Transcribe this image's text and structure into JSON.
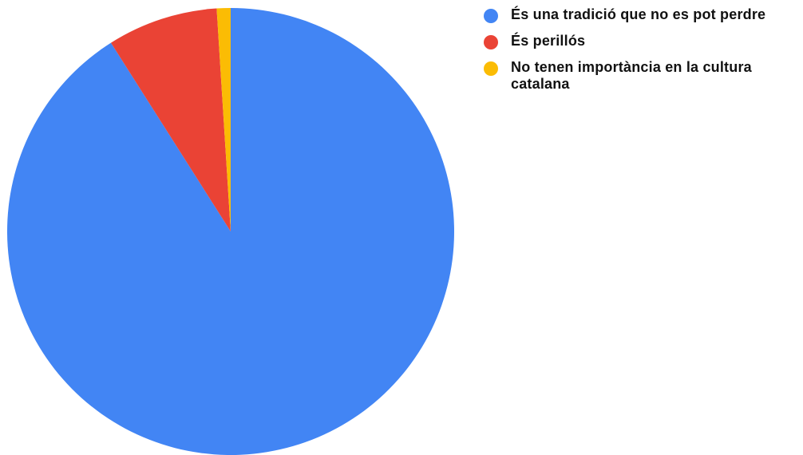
{
  "chart_data": {
    "type": "pie",
    "title": "",
    "legend_position": "top-right",
    "start_angle": "12 o'clock, clockwise",
    "series": [
      {
        "values": [
          91,
          8,
          1
        ],
        "labels": [
          "És una tradició que no es pot perdre",
          "És perillós",
          "No tenen importància en la cultura catalana"
        ],
        "colors": [
          "#4285f4",
          "#ea4335",
          "#fbbc04"
        ]
      }
    ]
  },
  "legend": {
    "items": [
      {
        "label": "És una tradició que no es pot perdre",
        "color": "#4285f4"
      },
      {
        "label": "És perillós",
        "color": "#ea4335"
      },
      {
        "label": "No tenen importància en la cultura catalana",
        "color": "#fbbc04"
      }
    ]
  }
}
